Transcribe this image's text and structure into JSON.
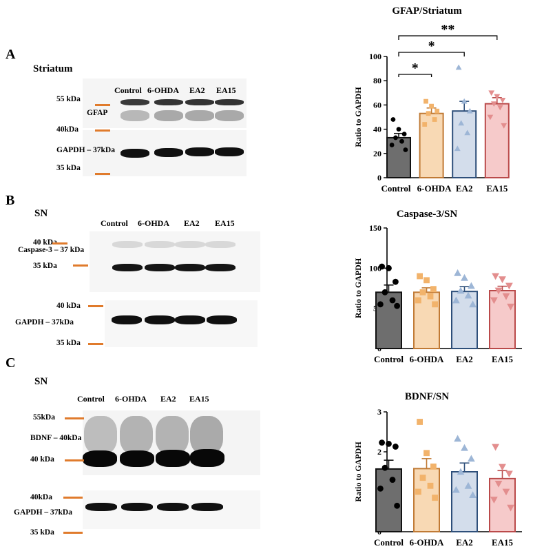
{
  "panels": {
    "A": {
      "letter": "A",
      "region": "Striatum",
      "lanes": [
        "Control",
        "6-OHDA",
        "EA2",
        "EA15"
      ],
      "blot_labels": {
        "m55": "55 kDa",
        "target": "GFAP",
        "m40": "40kDa",
        "gapdh": "GAPDH – 37kDa",
        "m35": "35 kDa"
      }
    },
    "B": {
      "letter": "B",
      "region": "SN",
      "lanes": [
        "Control",
        "6-OHDA",
        "EA2",
        "EA15"
      ],
      "blot_labels": {
        "m40a": "40 kDa",
        "target": "Caspase-3 – 37 kDa",
        "m35a": "35 kDa",
        "m40b": "40 kDa",
        "gapdh": "GAPDH – 37kDa",
        "m35b": "35 kDa"
      }
    },
    "C": {
      "letter": "C",
      "region": "SN",
      "lanes": [
        "Control",
        "6-OHDA",
        "EA2",
        "EA15"
      ],
      "blot_labels": {
        "m55": "55kDa",
        "target": "BDNF – 40kDa",
        "m40a": "40 kDa",
        "m40b": "40kDa",
        "gapdh": "GAPDH – 37kDa",
        "m35": "35 kDa"
      }
    }
  },
  "colors": {
    "Control": {
      "fill": "#6E6E6E",
      "edge": "#111111",
      "point": "#000000"
    },
    "6-OHDA": {
      "fill": "#F8D9B4",
      "edge": "#C07A35",
      "point": "#F2B36B"
    },
    "EA2": {
      "fill": "#D3DDEB",
      "edge": "#2E4F7A",
      "point": "#9DB6D6"
    },
    "EA15": {
      "fill": "#F6CACA",
      "edge": "#BA4A4A",
      "point": "#E38E8E"
    },
    "marker": "#E07B2C"
  },
  "chart_data": [
    {
      "type": "bar",
      "title": "GFAP/Striatum",
      "ylabel": "Ratio to GAPDH",
      "categories": [
        "Control",
        "6-OHDA",
        "EA2",
        "EA15"
      ],
      "values": [
        33,
        53,
        55,
        61
      ],
      "sem": [
        3.5,
        4.5,
        8,
        5
      ],
      "ylim": [
        0,
        100
      ],
      "yticks": [
        0,
        20,
        40,
        60,
        80,
        100
      ],
      "markers": [
        "circle",
        "square",
        "triangle",
        "triangle-down"
      ],
      "points": [
        [
          48,
          40,
          36,
          33,
          30,
          27,
          23
        ],
        [
          63,
          59,
          55,
          53,
          48,
          44
        ],
        [
          91,
          63,
          55,
          45,
          37,
          24
        ],
        [
          70,
          67,
          64,
          61,
          58,
          50,
          43
        ]
      ],
      "significance": [
        {
          "from": 0,
          "to": 1,
          "label": "*"
        },
        {
          "from": 0,
          "to": 2,
          "label": "*"
        },
        {
          "from": 0,
          "to": 3,
          "label": "**"
        }
      ]
    },
    {
      "type": "bar",
      "title": "Caspase-3/SN",
      "ylabel": "Ratio to GAPDH",
      "categories": [
        "Control",
        "6-OHDA",
        "EA2",
        "EA15"
      ],
      "values": [
        70,
        70,
        71,
        72
      ],
      "sem": [
        9,
        5.5,
        6,
        5.5
      ],
      "ylim": [
        0,
        150
      ],
      "yticks": [
        0,
        50,
        100,
        150
      ],
      "markers": [
        "circle",
        "square",
        "triangle",
        "triangle-down"
      ],
      "points": [
        [
          102,
          100,
          83,
          70,
          60,
          55,
          53
        ],
        [
          90,
          85,
          74,
          70,
          65,
          60,
          55
        ],
        [
          94,
          88,
          78,
          72,
          66,
          60,
          55
        ],
        [
          90,
          86,
          78,
          72,
          65,
          60,
          52
        ]
      ]
    },
    {
      "type": "bar",
      "title": "BDNF/SN",
      "ylabel": "Ratio to GAPDH",
      "categories": [
        "Control",
        "6-OHDA",
        "EA2",
        "EA15"
      ],
      "values": [
        1.57,
        1.58,
        1.5,
        1.33
      ],
      "sem": [
        0.22,
        0.25,
        0.22,
        0.2
      ],
      "ylim": [
        0,
        3
      ],
      "yticks": [
        0,
        1,
        2,
        3
      ],
      "markers": [
        "circle",
        "square",
        "triangle",
        "triangle-down"
      ],
      "points": [
        [
          2.23,
          2.2,
          2.13,
          1.6,
          1.3,
          1.08,
          0.65
        ],
        [
          2.75,
          1.97,
          1.63,
          1.35,
          1.15,
          1.0,
          0.85
        ],
        [
          2.33,
          2.1,
          1.83,
          1.5,
          1.15,
          1.05,
          0.92
        ],
        [
          2.12,
          1.62,
          1.45,
          1.2,
          1.0,
          0.8,
          0.6
        ]
      ]
    }
  ]
}
